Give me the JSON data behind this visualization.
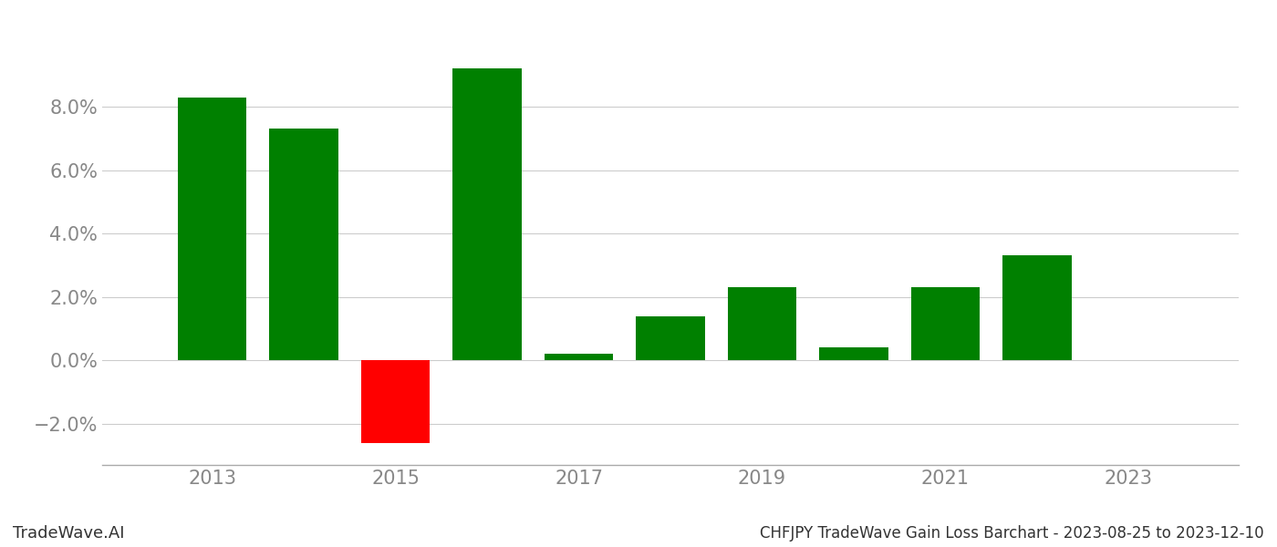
{
  "years": [
    2013,
    2014,
    2015,
    2016,
    2017,
    2018,
    2019,
    2020,
    2021,
    2022
  ],
  "values": [
    0.083,
    0.073,
    -0.026,
    0.092,
    0.002,
    0.014,
    0.023,
    0.004,
    0.023,
    0.033
  ],
  "colors": [
    "#008000",
    "#008000",
    "#ff0000",
    "#008000",
    "#008000",
    "#008000",
    "#008000",
    "#008000",
    "#008000",
    "#008000"
  ],
  "title": "CHFJPY TradeWave Gain Loss Barchart - 2023-08-25 to 2023-12-10",
  "watermark": "TradeWave.AI",
  "ylim_min": -0.033,
  "ylim_max": 0.105,
  "xlim_min": 2011.8,
  "xlim_max": 2024.2,
  "background_color": "#ffffff",
  "grid_color": "#cccccc",
  "axis_label_color": "#888888",
  "bar_width": 0.75,
  "xticks": [
    2013,
    2015,
    2017,
    2019,
    2021,
    2023
  ],
  "yticks": [
    -0.02,
    0.0,
    0.02,
    0.04,
    0.06,
    0.08
  ],
  "tick_fontsize": 15,
  "footer_fontsize_watermark": 13,
  "footer_fontsize_title": 12
}
